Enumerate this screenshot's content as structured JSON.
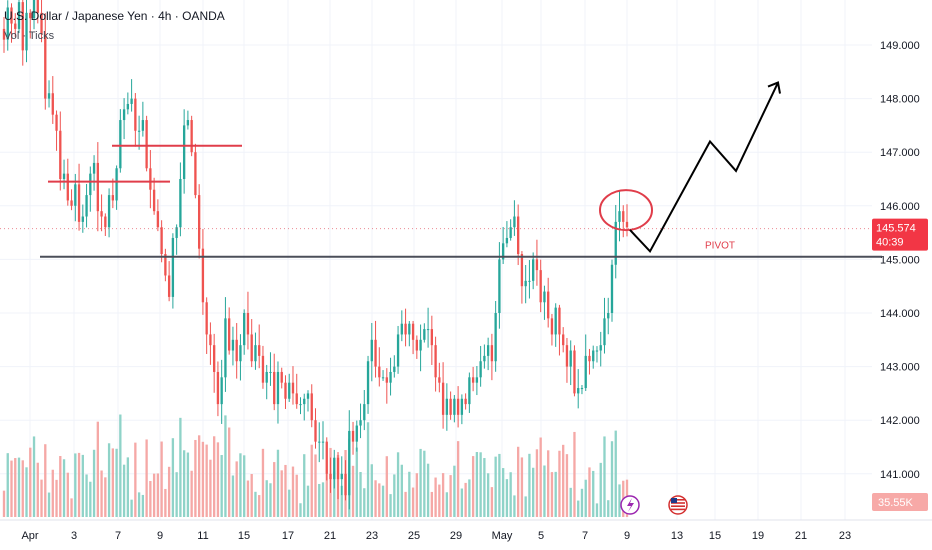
{
  "header": {
    "title": "U.S. Dollar / Japanese Yen · 4h · OANDA",
    "indicator": "Vol · Ticks"
  },
  "price_axis": {
    "ticks": [
      "149.000",
      "148.000",
      "147.000",
      "146.000",
      "145.000",
      "144.000",
      "143.000",
      "142.000",
      "141.000"
    ],
    "current_price": "145.574",
    "countdown": "40:39",
    "volume_value": "35.55K"
  },
  "time_axis": {
    "ticks": [
      "Apr",
      "3",
      "7",
      "9",
      "11",
      "15",
      "17",
      "21",
      "23",
      "25",
      "29",
      "May",
      "5",
      "7",
      "9",
      "13",
      "15",
      "19",
      "21",
      "23"
    ]
  },
  "annotations": {
    "pivot_label": "PIVOT",
    "pivot_level": 145.05,
    "resistance_lines": [
      146.45,
      147.12
    ],
    "forecast_path": [
      145.55,
      145.15,
      147.2,
      146.65,
      148.3
    ]
  },
  "colors": {
    "up": "#26a69a",
    "down": "#ef5350",
    "volume_up": "#8fd3c8",
    "volume_down": "#f5a8a6",
    "pivot_line": "#4a4e59",
    "annotation_red": "#e03d4a",
    "forecast": "#000000",
    "price_badge": "#f23645",
    "grid": "#f0f3fa"
  },
  "icons": {
    "dividends_event": "lightning-icon",
    "economic_event": "us-flag-icon"
  },
  "chart_data": {
    "type": "candlestick",
    "title": "U.S. Dollar / Japanese Yen · 4h · OANDA",
    "ylim": [
      140.4,
      149.6
    ],
    "y_ticks": [
      149,
      148,
      147,
      146,
      145,
      144,
      143,
      142,
      141
    ],
    "x_tick_labels": [
      "Apr",
      "3",
      "7",
      "9",
      "11",
      "15",
      "17",
      "21",
      "23",
      "25",
      "29",
      "May",
      "5",
      "7",
      "9",
      "13",
      "15",
      "19",
      "21",
      "23"
    ],
    "series": [
      {
        "name": "USDJPY",
        "close": [
          149.1,
          149.7,
          149.4,
          149.3,
          149.8,
          148.9,
          149.6,
          149.5,
          149.9,
          149.6,
          149.2,
          148.0,
          148.1,
          147.7,
          147.4,
          146.5,
          146.6,
          146.1,
          146.0,
          146.4,
          145.7,
          145.8,
          146.2,
          146.6,
          146.8,
          145.9,
          145.8,
          145.6,
          146.2,
          146.1,
          146.7,
          147.6,
          147.8,
          147.9,
          148.0,
          147.4,
          147.4,
          147.6,
          146.7,
          146.3,
          145.9,
          145.6,
          145.1,
          144.7,
          144.3,
          145.4,
          145.6,
          146.5,
          147.5,
          147.6,
          147.0,
          146.2,
          145.2,
          144.2,
          143.6,
          143.4,
          142.9,
          142.3,
          142.8,
          143.9,
          143.3,
          143.5,
          143.1,
          143.4,
          144.0,
          143.6,
          143.1,
          143.4,
          143.2,
          142.7,
          142.9,
          142.9,
          142.3,
          142.9,
          142.7,
          142.4,
          142.7,
          142.5,
          142.3,
          142.3,
          142.4,
          142.5,
          142.0,
          141.6,
          141.6,
          141.6,
          141.0,
          140.9,
          141.3,
          140.9,
          141.0,
          140.6,
          141.8,
          141.6,
          141.9,
          142.0,
          142.3,
          143.1,
          143.5,
          143.0,
          142.8,
          142.8,
          142.7,
          142.9,
          143.0,
          143.6,
          143.8,
          143.6,
          143.8,
          143.5,
          143.3,
          143.5,
          143.7,
          143.7,
          143.4,
          142.8,
          142.7,
          142.1,
          142.4,
          142.1,
          142.4,
          142.1,
          142.4,
          142.3,
          142.8,
          142.7,
          142.8,
          143.1,
          143.2,
          143.4,
          143.1,
          144.0,
          145.0,
          145.3,
          145.4,
          145.6,
          145.8,
          145.1,
          144.5,
          144.6,
          144.6,
          145.0,
          144.8,
          144.2,
          144.4,
          143.9,
          143.6,
          144.1,
          143.6,
          143.4,
          143.0,
          143.3,
          142.5,
          142.6,
          142.6,
          143.2,
          143.1,
          143.3,
          143.3,
          143.4,
          143.9,
          144.0,
          144.9,
          145.7,
          145.9,
          145.7,
          145.6
        ],
        "volume_note": "volume histogram shown for each candle"
      }
    ],
    "current_price": 145.574
  }
}
